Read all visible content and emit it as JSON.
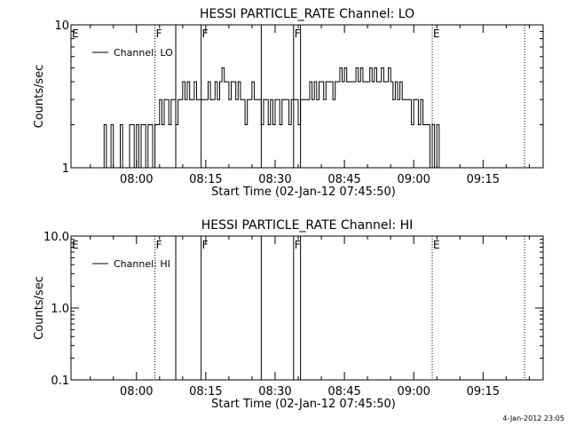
{
  "chart_data": [
    {
      "type": "line",
      "title": "HESSI PARTICLE_RATE Channel: LO",
      "xlabel": "Start Time (02-Jan-12 07:45:50)",
      "ylabel": "Counts/sec",
      "yscale": "log",
      "ylim": [
        1,
        10
      ],
      "xlim": [
        "07:45:50",
        "09:28:00"
      ],
      "x_tick_labels": [
        "08:00",
        "08:15",
        "08:30",
        "08:45",
        "09:00",
        "09:15"
      ],
      "y_tick_labels": [
        "1",
        "10"
      ],
      "legend": {
        "entries": [
          "Channel: LO"
        ],
        "placement": "top-left"
      },
      "grid": false,
      "series": [
        {
          "name": "Channel: LO",
          "points": [
            [
              "07:52:30",
              1
            ],
            [
              "07:53:00",
              2
            ],
            [
              "07:53:30",
              1
            ],
            [
              "07:54:00",
              1
            ],
            [
              "07:54:30",
              2
            ],
            [
              "07:55:00",
              1
            ],
            [
              "07:56:00",
              1
            ],
            [
              "07:56:30",
              2
            ],
            [
              "07:57:00",
              1
            ],
            [
              "07:58:00",
              1
            ],
            [
              "07:58:30",
              2
            ],
            [
              "07:59:00",
              2
            ],
            [
              "07:59:30",
              1
            ],
            [
              "08:00:00",
              2
            ],
            [
              "08:00:30",
              1
            ],
            [
              "08:01:00",
              2
            ],
            [
              "08:01:30",
              2
            ],
            [
              "08:02:00",
              1
            ],
            [
              "08:02:30",
              2
            ],
            [
              "08:03:00",
              2
            ],
            [
              "08:03:30",
              1
            ],
            [
              "08:04:00",
              2
            ],
            [
              "08:04:30",
              2
            ],
            [
              "08:05:00",
              3
            ],
            [
              "08:05:30",
              2
            ],
            [
              "08:06:00",
              3
            ],
            [
              "08:06:30",
              3
            ],
            [
              "08:07:00",
              2
            ],
            [
              "08:07:30",
              3
            ],
            [
              "08:08:00",
              3
            ],
            [
              "08:08:30",
              2
            ],
            [
              "08:09:00",
              3
            ],
            [
              "08:09:30",
              3
            ],
            [
              "08:10:00",
              4
            ],
            [
              "08:10:30",
              3
            ],
            [
              "08:11:00",
              4
            ],
            [
              "08:11:30",
              3
            ],
            [
              "08:12:00",
              3
            ],
            [
              "08:12:30",
              4
            ],
            [
              "08:13:00",
              3
            ],
            [
              "08:13:30",
              3
            ],
            [
              "08:14:00",
              3
            ],
            [
              "08:14:30",
              3
            ],
            [
              "08:15:00",
              3
            ],
            [
              "08:15:30",
              4
            ],
            [
              "08:16:00",
              3
            ],
            [
              "08:16:30",
              3
            ],
            [
              "08:17:00",
              4
            ],
            [
              "08:17:30",
              3
            ],
            [
              "08:18:00",
              4
            ],
            [
              "08:18:30",
              5
            ],
            [
              "08:19:00",
              4
            ],
            [
              "08:19:30",
              4
            ],
            [
              "08:20:00",
              3
            ],
            [
              "08:20:30",
              4
            ],
            [
              "08:21:00",
              4
            ],
            [
              "08:21:30",
              3
            ],
            [
              "08:22:00",
              4
            ],
            [
              "08:22:30",
              3
            ],
            [
              "08:23:00",
              3
            ],
            [
              "08:23:30",
              2
            ],
            [
              "08:24:00",
              3
            ],
            [
              "08:24:30",
              3
            ],
            [
              "08:25:00",
              4
            ],
            [
              "08:25:30",
              3
            ],
            [
              "08:26:00",
              3
            ],
            [
              "08:26:30",
              3
            ],
            [
              "08:27:00",
              2
            ],
            [
              "08:27:30",
              3
            ],
            [
              "08:28:00",
              3
            ],
            [
              "08:28:30",
              2
            ],
            [
              "08:29:00",
              3
            ],
            [
              "08:29:30",
              2
            ],
            [
              "08:30:00",
              3
            ],
            [
              "08:30:30",
              3
            ],
            [
              "08:31:00",
              2
            ],
            [
              "08:31:30",
              3
            ],
            [
              "08:32:00",
              3
            ],
            [
              "08:32:30",
              3
            ],
            [
              "08:33:00",
              2
            ],
            [
              "08:33:30",
              3
            ],
            [
              "08:34:00",
              3
            ],
            [
              "08:34:30",
              3
            ],
            [
              "08:35:00",
              2
            ],
            [
              "08:35:30",
              3
            ],
            [
              "08:36:00",
              3
            ],
            [
              "08:36:30",
              3
            ],
            [
              "08:37:00",
              3
            ],
            [
              "08:37:30",
              4
            ],
            [
              "08:38:00",
              3
            ],
            [
              "08:38:30",
              4
            ],
            [
              "08:39:00",
              3
            ],
            [
              "08:39:30",
              4
            ],
            [
              "08:40:00",
              4
            ],
            [
              "08:40:30",
              3
            ],
            [
              "08:41:00",
              4
            ],
            [
              "08:41:30",
              4
            ],
            [
              "08:42:00",
              4
            ],
            [
              "08:42:30",
              3
            ],
            [
              "08:43:00",
              4
            ],
            [
              "08:43:30",
              4
            ],
            [
              "08:44:00",
              5
            ],
            [
              "08:44:30",
              4
            ],
            [
              "08:45:00",
              5
            ],
            [
              "08:45:30",
              4
            ],
            [
              "08:46:00",
              4
            ],
            [
              "08:46:30",
              4
            ],
            [
              "08:47:00",
              4
            ],
            [
              "08:47:30",
              5
            ],
            [
              "08:48:00",
              4
            ],
            [
              "08:48:30",
              5
            ],
            [
              "08:49:00",
              4
            ],
            [
              "08:49:30",
              4
            ],
            [
              "08:50:00",
              4
            ],
            [
              "08:50:30",
              5
            ],
            [
              "08:51:00",
              4
            ],
            [
              "08:51:30",
              5
            ],
            [
              "08:52:00",
              4
            ],
            [
              "08:52:30",
              4
            ],
            [
              "08:53:00",
              5
            ],
            [
              "08:53:30",
              4
            ],
            [
              "08:54:00",
              4
            ],
            [
              "08:54:30",
              5
            ],
            [
              "08:55:00",
              4
            ],
            [
              "08:55:30",
              3
            ],
            [
              "08:56:00",
              4
            ],
            [
              "08:56:30",
              3
            ],
            [
              "08:57:00",
              4
            ],
            [
              "08:57:30",
              3
            ],
            [
              "08:58:00",
              3
            ],
            [
              "08:58:30",
              3
            ],
            [
              "08:59:00",
              3
            ],
            [
              "08:59:30",
              2
            ],
            [
              "09:00:00",
              3
            ],
            [
              "09:00:30",
              3
            ],
            [
              "09:01:00",
              2
            ],
            [
              "09:01:30",
              3
            ],
            [
              "09:02:00",
              2
            ],
            [
              "09:02:30",
              2
            ],
            [
              "09:03:00",
              2
            ],
            [
              "09:03:30",
              1
            ],
            [
              "09:04:00",
              2
            ],
            [
              "09:04:30",
              1
            ],
            [
              "09:05:00",
              2
            ],
            [
              "09:05:30",
              1
            ]
          ]
        }
      ],
      "annotations": [
        {
          "label": "E",
          "x": "07:45:50",
          "style": "dotted"
        },
        {
          "label": "F",
          "x": "08:04:00",
          "style": "dotted"
        },
        {
          "label": "",
          "x": "08:08:30",
          "style": "solid"
        },
        {
          "label": "F",
          "x": "08:14:00",
          "style": "solid"
        },
        {
          "label": "",
          "x": "08:27:00",
          "style": "solid"
        },
        {
          "label": "F",
          "x": "08:34:00",
          "style": "solid"
        },
        {
          "label": "",
          "x": "08:35:30",
          "style": "solid"
        },
        {
          "label": "E",
          "x": "09:04:00",
          "style": "dotted"
        },
        {
          "label": "",
          "x": "09:24:00",
          "style": "dotted"
        }
      ]
    },
    {
      "type": "line",
      "title": "HESSI PARTICLE_RATE Channel: HI",
      "xlabel": "Start Time (02-Jan-12 07:45:50)",
      "ylabel": "Counts/sec",
      "yscale": "log",
      "ylim": [
        0.1,
        10
      ],
      "xlim": [
        "07:45:50",
        "09:28:00"
      ],
      "x_tick_labels": [
        "08:00",
        "08:15",
        "08:30",
        "08:45",
        "09:00",
        "09:15"
      ],
      "y_tick_labels": [
        "0.1",
        "1.0",
        "10.0"
      ],
      "legend": {
        "entries": [
          "Channel: HI"
        ],
        "placement": "top-left"
      },
      "grid": false,
      "series": [
        {
          "name": "Channel: HI",
          "points": []
        }
      ],
      "annotations": [
        {
          "label": "E",
          "x": "07:45:50",
          "style": "dotted"
        },
        {
          "label": "F",
          "x": "08:04:00",
          "style": "dotted"
        },
        {
          "label": "",
          "x": "08:08:30",
          "style": "solid"
        },
        {
          "label": "F",
          "x": "08:14:00",
          "style": "solid"
        },
        {
          "label": "",
          "x": "08:27:00",
          "style": "solid"
        },
        {
          "label": "F",
          "x": "08:34:00",
          "style": "solid"
        },
        {
          "label": "",
          "x": "08:35:30",
          "style": "solid"
        },
        {
          "label": "E",
          "x": "09:04:00",
          "style": "dotted"
        },
        {
          "label": "",
          "x": "09:24:00",
          "style": "dotted"
        }
      ]
    }
  ],
  "footer": {
    "timestamp": "4-Jan-2012 23:05"
  },
  "colors": {
    "background": "#ffffff",
    "foreground": "#000000"
  }
}
